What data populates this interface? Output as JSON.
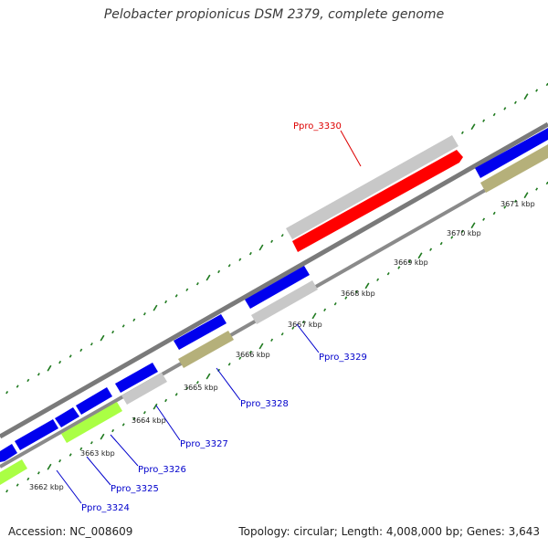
{
  "title": "Pelobacter propionicus DSM 2379, complete genome",
  "accession": "Accession: NC_008609",
  "summary": "Topology: circular; Length: 4,008,000 bp; Genes: 3,643",
  "colors": {
    "tick": "#1f7a1f",
    "backbone": "#808080",
    "gene_blue": "#0000ee",
    "gene_gray": "#c8c8c8",
    "gene_olive": "#b5b07a",
    "gene_lime": "#aaff44",
    "gene_red": "#ff0000",
    "label_blue": "#0000cc",
    "label_red": "#dd0000"
  },
  "kbp_labels": [
    "3662 kbp",
    "3663 kbp",
    "3664 kbp",
    "3665 kbp",
    "3666 kbp",
    "3667 kbp",
    "3668 kbp",
    "3669 kbp",
    "3670 kbp",
    "3671 kbp"
  ],
  "genes": [
    {
      "label": "Ppro_3324",
      "color": "label_blue"
    },
    {
      "label": "Ppro_3325",
      "color": "label_blue"
    },
    {
      "label": "Ppro_3326",
      "color": "label_blue"
    },
    {
      "label": "Ppro_3327",
      "color": "label_blue"
    },
    {
      "label": "Ppro_3328",
      "color": "label_blue"
    },
    {
      "label": "Ppro_3329",
      "color": "label_blue"
    },
    {
      "label": "Ppro_3330",
      "color": "label_red"
    }
  ]
}
